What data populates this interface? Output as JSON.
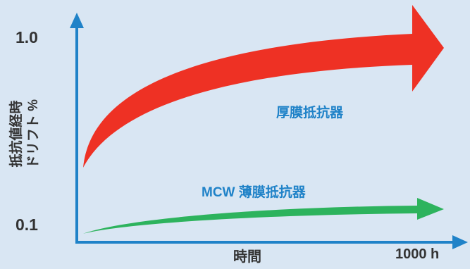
{
  "chart": {
    "y_tick_top": "1.0",
    "y_tick_bottom": "0.1",
    "y_label_line1": "抵抗値経時",
    "y_label_line2": "ドリフト %",
    "x_label": "時間",
    "x_end_label": "1000 h"
  },
  "series": {
    "thick_film": {
      "name": "厚膜抵抗器",
      "color": "#ee3124"
    },
    "thin_film": {
      "name": "MCW 薄膜抵抗器",
      "color": "#2db35d"
    }
  },
  "colors": {
    "axis": "#1f82c8",
    "background": "#d9e6f3",
    "label_accent": "#1f82c8"
  }
}
